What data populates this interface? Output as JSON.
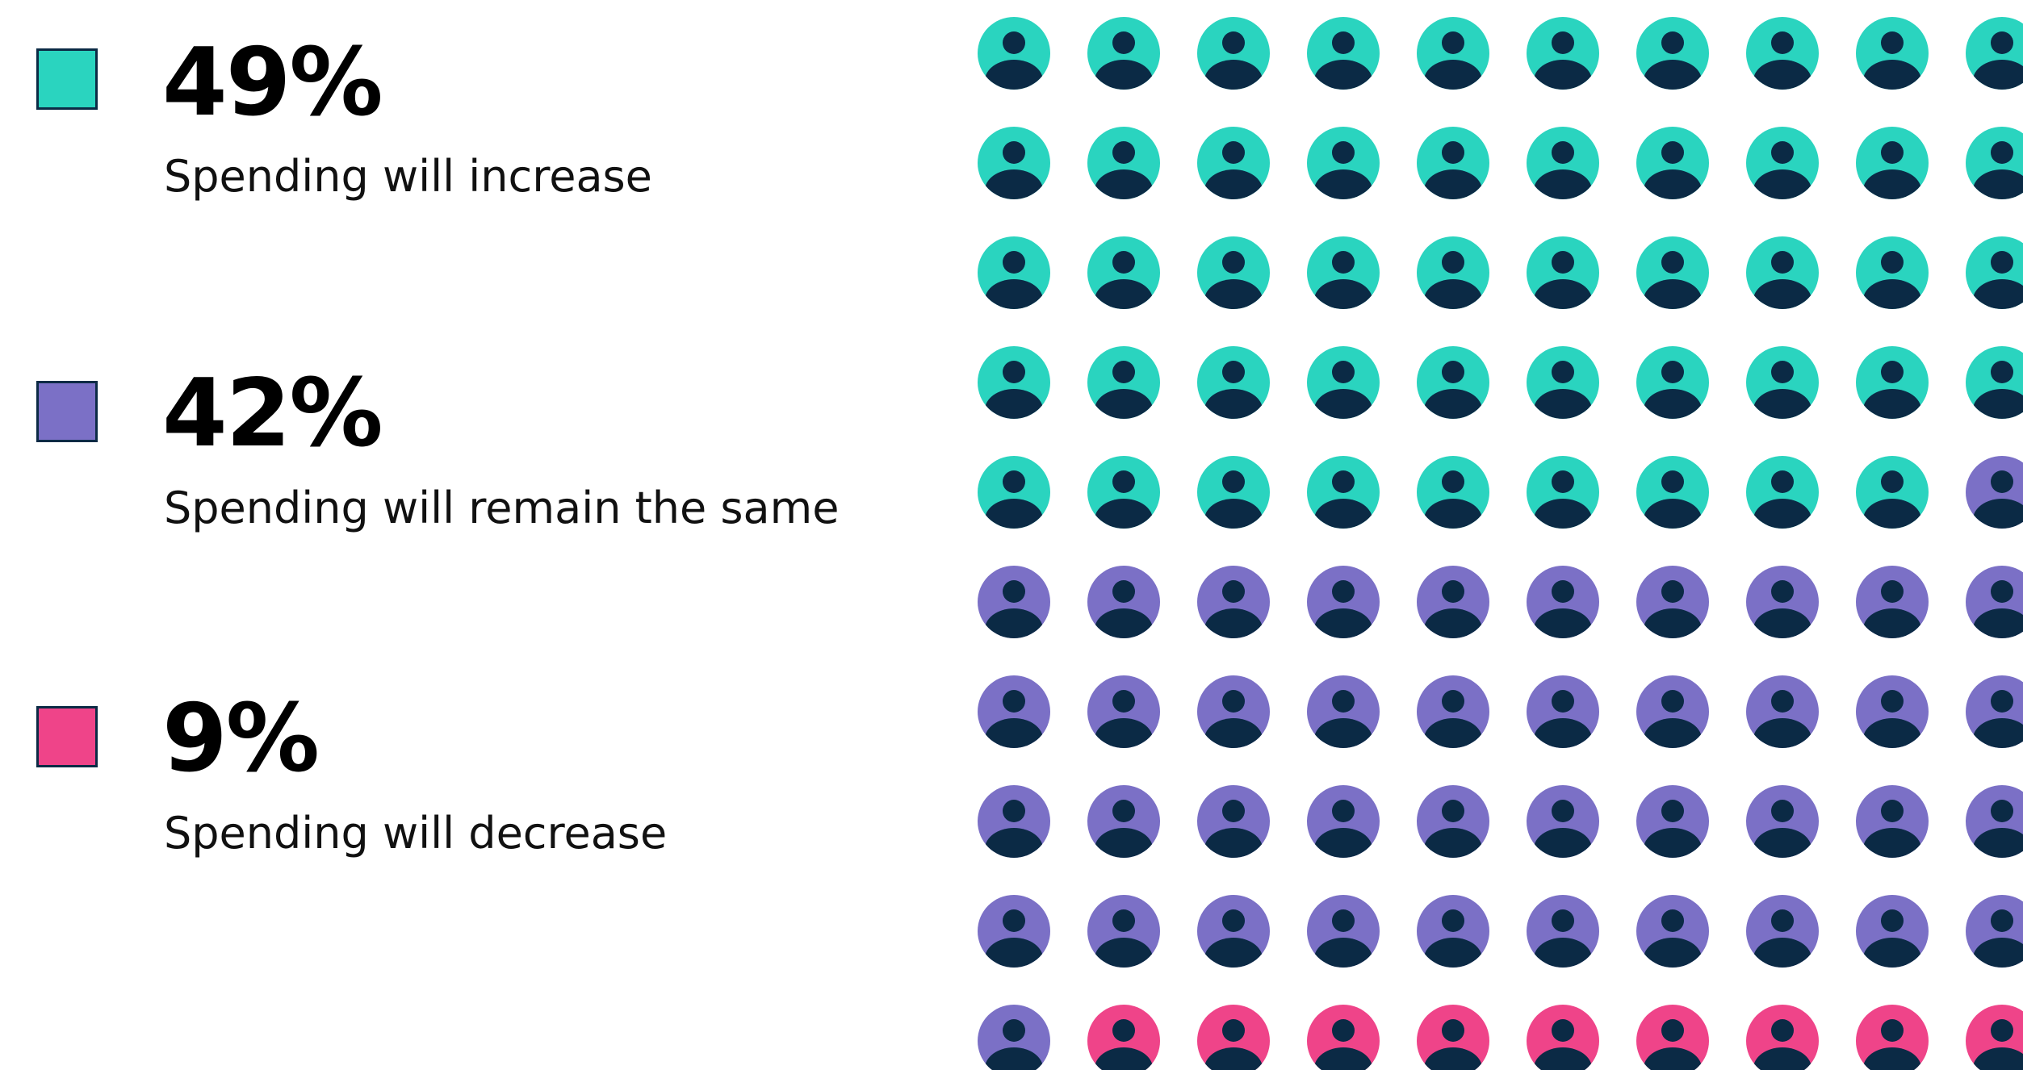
{
  "legend": [
    {
      "value": "49%",
      "label": "Spending will increase",
      "color": "#2ad4bf"
    },
    {
      "value": "42%",
      "label": "Spending will remain the same",
      "color": "#7b70c6"
    },
    {
      "value": "9%",
      "label": "Spending will decrease",
      "color": "#ef4489"
    }
  ],
  "chart_data": {
    "type": "waffle",
    "total": 100,
    "series": [
      {
        "name": "Spending will increase",
        "value": 49,
        "color": "#2ad4bf"
      },
      {
        "name": "Spending will remain the same",
        "value": 42,
        "color": "#7b70c6"
      },
      {
        "name": "Spending will decrease",
        "value": 9,
        "color": "#ef4489"
      }
    ],
    "icon": "person-icon",
    "icon_figure_color": "#0b2a45"
  }
}
